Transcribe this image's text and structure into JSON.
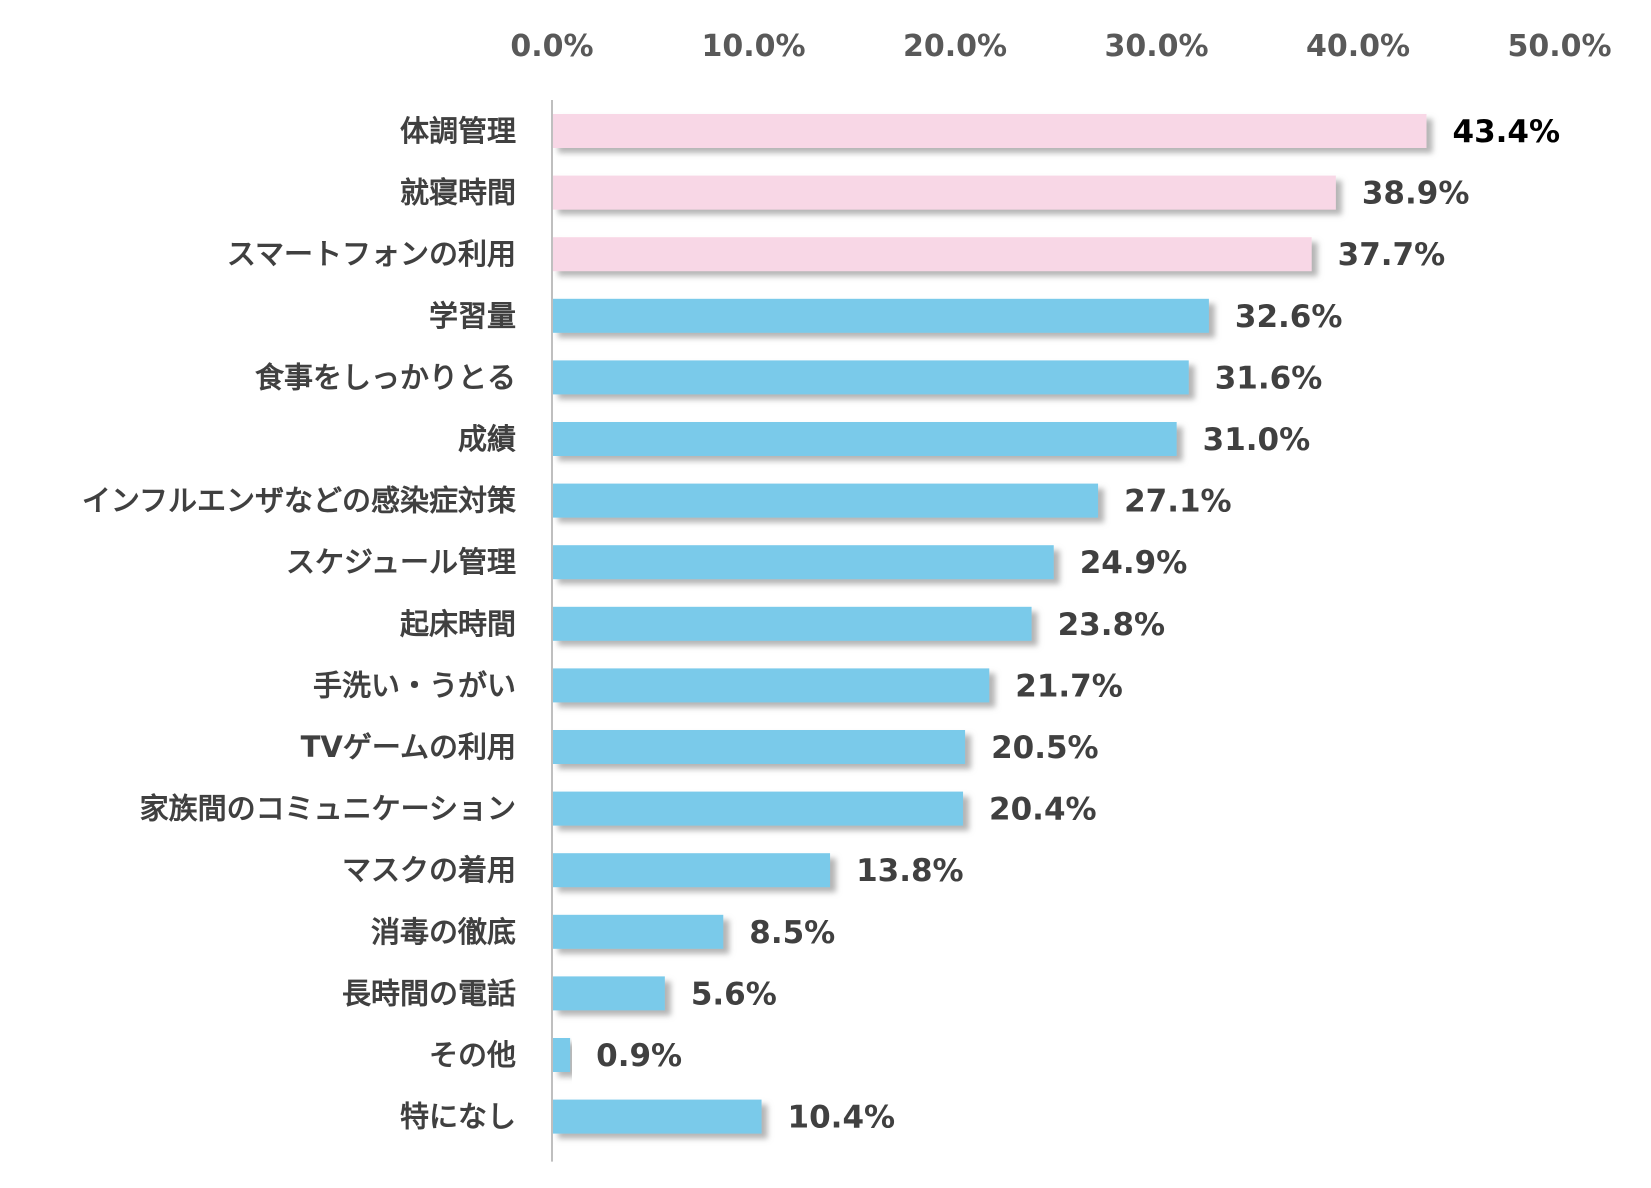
{
  "chart_data": {
    "type": "bar",
    "orientation": "horizontal",
    "title": "",
    "xlabel": "",
    "ylabel": "",
    "xlim": [
      0,
      50
    ],
    "x_ticks": [
      0,
      10,
      20,
      30,
      40,
      50
    ],
    "x_tick_labels": [
      "0.0%",
      "10.0%",
      "20.0%",
      "30.0%",
      "40.0%",
      "50.0%"
    ],
    "x_axis_position": "top",
    "grid": false,
    "legend": "none",
    "highlight_count": 3,
    "colors": {
      "highlight": "#F8D7E6",
      "normal": "#7ACAEA",
      "axis": "#BFBFBF",
      "shadow": "#8C8C8C"
    },
    "categories": [
      "体調管理",
      "就寝時間",
      "スマートフォンの利用",
      "学習量",
      "食事をしっかりとる",
      "成績",
      "インフルエンザなどの感染症対策",
      "スケジュール管理",
      "起床時間",
      "手洗い・うがい",
      "TVゲームの利用",
      "家族間のコミュニケーション",
      "マスクの着用",
      "消毒の徹底",
      "長時間の電話",
      "その他",
      "特になし"
    ],
    "values": [
      43.4,
      38.9,
      37.7,
      32.6,
      31.6,
      31.0,
      27.1,
      24.9,
      23.8,
      21.7,
      20.5,
      20.4,
      13.8,
      8.5,
      5.6,
      0.9,
      10.4
    ],
    "value_labels": [
      "43.4%",
      "38.9%",
      "37.7%",
      "32.6%",
      "31.6%",
      "31.0%",
      "27.1%",
      "24.9%",
      "23.8%",
      "21.7%",
      "20.5%",
      "20.4%",
      "13.8%",
      "8.5%",
      "5.6%",
      "0.9%",
      "10.4%"
    ]
  }
}
